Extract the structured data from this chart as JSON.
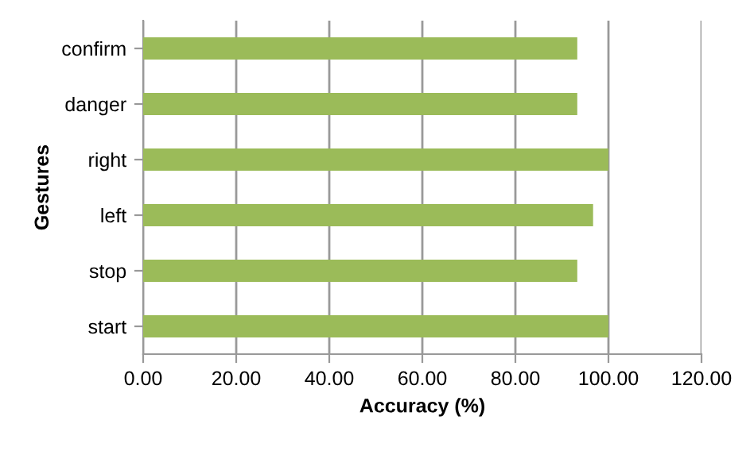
{
  "chart_data": {
    "type": "bar",
    "orientation": "horizontal",
    "xlabel": "Accuracy (%)",
    "ylabel": "Gestures",
    "categories": [
      "confirm",
      "danger",
      "right",
      "left",
      "stop",
      "start"
    ],
    "values": [
      93.3,
      93.3,
      100,
      96.7,
      93.3,
      100
    ],
    "color": "#9bbb59",
    "xlim": [
      0,
      120
    ],
    "xticks": [
      {
        "value": 0,
        "label": "0.00"
      },
      {
        "value": 20,
        "label": "20.00"
      },
      {
        "value": 40,
        "label": "40.00"
      },
      {
        "value": 60,
        "label": "60.00"
      },
      {
        "value": 80,
        "label": "80.00"
      },
      {
        "value": 100,
        "label": "100.00"
      },
      {
        "value": 120,
        "label": "120.00"
      }
    ],
    "grid": "x",
    "legend": false
  }
}
